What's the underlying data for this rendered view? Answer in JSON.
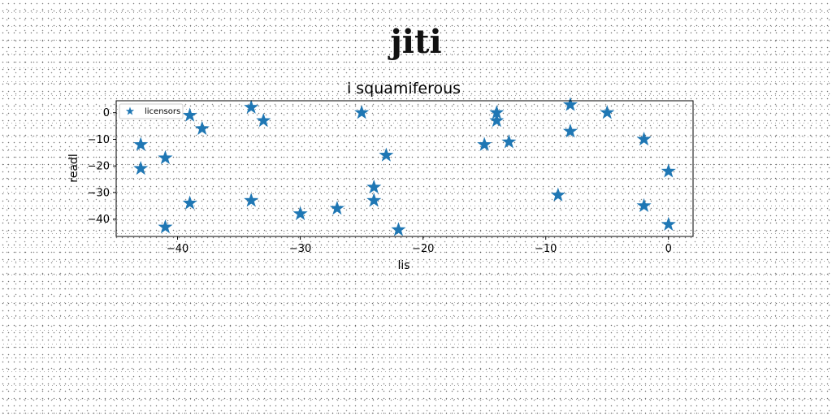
{
  "page": {
    "title": "jiti"
  },
  "chart_data": {
    "type": "scatter",
    "title": "i squamiferous",
    "xlabel": "lis",
    "ylabel": "readl",
    "xlim": [
      -45,
      2
    ],
    "ylim": [
      -46.5,
      4.5
    ],
    "xticks": [
      -40,
      -30,
      -20,
      -10,
      0
    ],
    "yticks": [
      0,
      -10,
      -20,
      -30,
      -40
    ],
    "grid": false,
    "legend_position": "upper-left",
    "series": [
      {
        "name": "licensors",
        "marker": "star",
        "color": "#1f77b4",
        "x": [
          -43,
          -43,
          -41,
          -41,
          -39,
          -39,
          -38,
          -34,
          -34,
          -33,
          -30,
          -27,
          -25,
          -24,
          -24,
          -23,
          -22,
          -15,
          -14,
          -14,
          -13,
          -9,
          -8,
          -8,
          -5,
          -2,
          -2,
          0,
          0
        ],
        "y": [
          -12,
          -21,
          -17,
          -43,
          -1,
          -34,
          -6,
          2,
          -33,
          -3,
          -38,
          -36,
          0,
          -28,
          -33,
          -16,
          -44,
          -12,
          0,
          -3,
          -11,
          -31,
          3,
          -7,
          0,
          -10,
          -35,
          -22,
          -42
        ]
      }
    ]
  }
}
